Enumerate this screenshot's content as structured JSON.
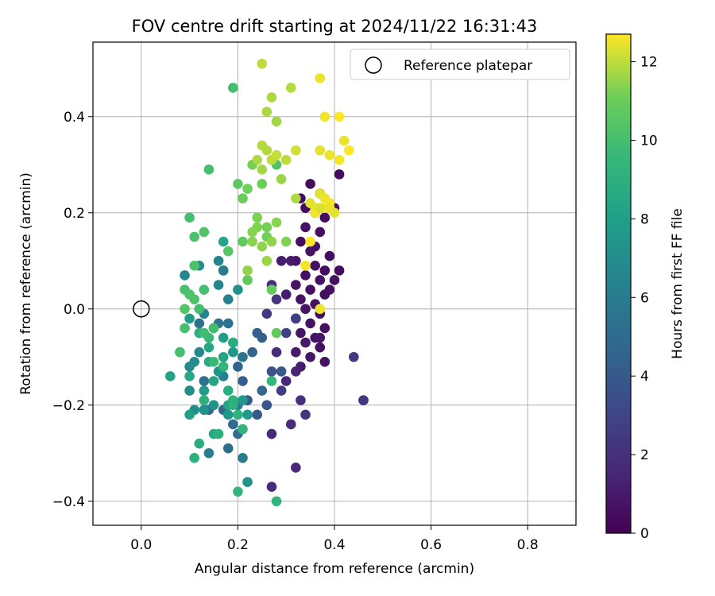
{
  "chart_data": {
    "type": "scatter",
    "title": "FOV centre drift starting at 2024/11/22 16:31:43",
    "xlabel": "Angular distance from reference (arcmin)",
    "ylabel": "Rotation from reference (arcmin)",
    "xlim": [
      -0.1,
      0.9
    ],
    "ylim": [
      -0.45,
      0.555
    ],
    "xticks": [
      0.0,
      0.2,
      0.4,
      0.6,
      0.8
    ],
    "xtick_labels": [
      "0.0",
      "0.2",
      "0.4",
      "0.6",
      "0.8"
    ],
    "yticks": [
      -0.4,
      -0.2,
      0.0,
      0.2,
      0.4
    ],
    "ytick_labels": [
      "−0.4",
      "−0.2",
      "0.0",
      "0.2",
      "0.4"
    ],
    "grid": true,
    "legend": {
      "placement": "top-right",
      "entries": [
        "Reference platepar"
      ]
    },
    "reference_point": {
      "x": 0.0,
      "y": 0.0
    },
    "colorbar": {
      "label": "Hours from first FF file",
      "colormap": "viridis",
      "range": [
        0,
        12.7
      ],
      "ticks": [
        0,
        2,
        4,
        6,
        8,
        10,
        12
      ],
      "tick_labels": [
        "0",
        "2",
        "4",
        "6",
        "8",
        "10",
        "12"
      ]
    },
    "points": [
      [
        0.41,
        0.28,
        0.4
      ],
      [
        0.37,
        0.24,
        0.5
      ],
      [
        0.4,
        0.21,
        0.6
      ],
      [
        0.35,
        0.26,
        0.4
      ],
      [
        0.33,
        0.23,
        0.5
      ],
      [
        0.36,
        0.2,
        0.6
      ],
      [
        0.38,
        0.19,
        0.5
      ],
      [
        0.34,
        0.17,
        0.7
      ],
      [
        0.37,
        0.16,
        0.6
      ],
      [
        0.33,
        0.14,
        0.5
      ],
      [
        0.36,
        0.13,
        0.6
      ],
      [
        0.35,
        0.12,
        0.7
      ],
      [
        0.39,
        0.11,
        0.5
      ],
      [
        0.32,
        0.1,
        0.8
      ],
      [
        0.36,
        0.09,
        0.6
      ],
      [
        0.38,
        0.08,
        0.5
      ],
      [
        0.41,
        0.08,
        0.4
      ],
      [
        0.34,
        0.07,
        0.6
      ],
      [
        0.37,
        0.06,
        0.7
      ],
      [
        0.32,
        0.05,
        0.8
      ],
      [
        0.35,
        0.04,
        0.6
      ],
      [
        0.38,
        0.03,
        0.5
      ],
      [
        0.33,
        0.02,
        0.7
      ],
      [
        0.36,
        0.01,
        0.6
      ],
      [
        0.34,
        0.0,
        0.8
      ],
      [
        0.37,
        -0.01,
        0.5
      ],
      [
        0.32,
        -0.02,
        0.9
      ],
      [
        0.35,
        -0.03,
        0.7
      ],
      [
        0.38,
        -0.04,
        0.6
      ],
      [
        0.33,
        -0.05,
        0.8
      ],
      [
        0.36,
        -0.06,
        0.7
      ],
      [
        0.34,
        -0.07,
        0.9
      ],
      [
        0.37,
        -0.08,
        0.6
      ],
      [
        0.32,
        -0.09,
        1.0
      ],
      [
        0.35,
        -0.1,
        0.8
      ],
      [
        0.38,
        -0.11,
        0.6
      ],
      [
        0.33,
        -0.12,
        1.0
      ],
      [
        0.31,
        0.1,
        1.0
      ],
      [
        0.34,
        0.21,
        0.5
      ],
      [
        0.3,
        0.03,
        1.1
      ],
      [
        0.29,
        0.1,
        1.2
      ],
      [
        0.39,
        0.04,
        0.6
      ],
      [
        0.4,
        0.06,
        0.7
      ],
      [
        0.37,
        -0.06,
        0.8
      ],
      [
        0.32,
        -0.13,
        1.5
      ],
      [
        0.28,
        -0.09,
        1.8
      ],
      [
        0.3,
        -0.15,
        1.7
      ],
      [
        0.33,
        -0.19,
        2.0
      ],
      [
        0.31,
        -0.24,
        1.9
      ],
      [
        0.27,
        -0.26,
        1.6
      ],
      [
        0.27,
        -0.37,
        1.7
      ],
      [
        0.32,
        -0.33,
        1.6
      ],
      [
        0.34,
        -0.22,
        2.2
      ],
      [
        0.44,
        -0.1,
        2.4
      ],
      [
        0.46,
        -0.19,
        2.5
      ],
      [
        0.46,
        -0.19,
        2.3
      ],
      [
        0.26,
        -0.01,
        2.4
      ],
      [
        0.29,
        -0.17,
        2.6
      ],
      [
        0.3,
        -0.05,
        2.8
      ],
      [
        0.27,
        0.05,
        1.9
      ],
      [
        0.28,
        0.02,
        2.2
      ],
      [
        0.32,
        -0.02,
        2.7
      ],
      [
        0.27,
        -0.13,
        3.6
      ],
      [
        0.26,
        -0.2,
        3.8
      ],
      [
        0.24,
        -0.22,
        4.0
      ],
      [
        0.22,
        -0.19,
        3.9
      ],
      [
        0.25,
        -0.06,
        4.2
      ],
      [
        0.24,
        -0.05,
        4.4
      ],
      [
        0.21,
        -0.15,
        4.3
      ],
      [
        0.2,
        -0.12,
        4.6
      ],
      [
        0.23,
        -0.09,
        4.5
      ],
      [
        0.29,
        -0.13,
        4.0
      ],
      [
        0.25,
        -0.17,
        4.8
      ],
      [
        0.19,
        -0.24,
        4.9
      ],
      [
        0.17,
        -0.21,
        4.7
      ],
      [
        0.2,
        -0.26,
        5.0
      ],
      [
        0.18,
        -0.29,
        5.2
      ],
      [
        0.14,
        -0.21,
        5.0
      ],
      [
        0.13,
        -0.15,
        5.3
      ],
      [
        0.12,
        -0.03,
        5.2
      ],
      [
        0.16,
        -0.03,
        5.5
      ],
      [
        0.18,
        -0.03,
        5.4
      ],
      [
        0.21,
        -0.1,
        5.6
      ],
      [
        0.2,
        -0.2,
        5.8
      ],
      [
        0.21,
        -0.31,
        6.0
      ],
      [
        0.14,
        -0.3,
        6.1
      ],
      [
        0.17,
        -0.14,
        6.2
      ],
      [
        0.18,
        0.02,
        6.3
      ],
      [
        0.17,
        0.08,
        6.2
      ],
      [
        0.17,
        0.08,
        6.0
      ],
      [
        0.16,
        0.1,
        6.5
      ],
      [
        0.16,
        0.05,
        6.6
      ],
      [
        0.09,
        0.07,
        6.6
      ],
      [
        0.13,
        -0.01,
        6.4
      ],
      [
        0.12,
        -0.09,
        6.7
      ],
      [
        0.11,
        -0.11,
        6.8
      ],
      [
        0.1,
        -0.12,
        6.9
      ],
      [
        0.1,
        -0.17,
        7.0
      ],
      [
        0.11,
        -0.21,
        7.1
      ],
      [
        0.13,
        -0.21,
        7.2
      ],
      [
        0.15,
        -0.2,
        7.3
      ],
      [
        0.16,
        -0.13,
        7.4
      ],
      [
        0.19,
        -0.09,
        7.5
      ],
      [
        0.21,
        -0.19,
        7.6
      ],
      [
        0.22,
        -0.22,
        7.7
      ],
      [
        0.22,
        -0.36,
        7.3
      ],
      [
        0.12,
        0.09,
        7.0
      ],
      [
        0.2,
        0.04,
        7.2
      ],
      [
        0.18,
        -0.22,
        7.5
      ],
      [
        0.13,
        -0.17,
        7.8
      ],
      [
        0.1,
        -0.02,
        7.9
      ],
      [
        0.15,
        -0.04,
        8.0
      ],
      [
        0.17,
        -0.06,
        8.0
      ],
      [
        0.06,
        -0.14,
        8.2
      ],
      [
        0.1,
        -0.22,
        8.1
      ],
      [
        0.17,
        -0.1,
        8.3
      ],
      [
        0.18,
        -0.2,
        8.3
      ],
      [
        0.17,
        0.14,
        8.4
      ],
      [
        0.14,
        -0.08,
        8.6
      ],
      [
        0.15,
        -0.15,
        8.4
      ],
      [
        0.14,
        -0.11,
        8.7
      ],
      [
        0.1,
        -0.14,
        8.5
      ],
      [
        0.12,
        -0.05,
        8.9
      ],
      [
        0.19,
        -0.07,
        8.8
      ],
      [
        0.18,
        -0.17,
        8.9
      ],
      [
        0.15,
        -0.26,
        8.6
      ],
      [
        0.16,
        -0.26,
        9.0
      ],
      [
        0.13,
        -0.19,
        9.0
      ],
      [
        0.12,
        -0.28,
        8.9
      ],
      [
        0.11,
        -0.31,
        9.0
      ],
      [
        0.19,
        -0.19,
        9.1
      ],
      [
        0.08,
        -0.09,
        9.2
      ],
      [
        0.19,
        -0.2,
        9.1
      ],
      [
        0.2,
        -0.22,
        9.2
      ],
      [
        0.21,
        -0.25,
        9.3
      ],
      [
        0.2,
        -0.38,
        9.4
      ],
      [
        0.28,
        -0.4,
        9.3
      ],
      [
        0.27,
        -0.15,
        9.5
      ],
      [
        0.17,
        -0.12,
        9.4
      ],
      [
        0.15,
        -0.11,
        9.6
      ],
      [
        0.14,
        -0.06,
        9.7
      ],
      [
        0.13,
        -0.05,
        9.8
      ],
      [
        0.15,
        -0.04,
        9.9
      ],
      [
        0.09,
        -0.04,
        10.0
      ],
      [
        0.08,
        -0.09,
        10.0
      ],
      [
        0.09,
        0.04,
        10.1
      ],
      [
        0.1,
        0.03,
        10.2
      ],
      [
        0.11,
        0.02,
        10.3
      ],
      [
        0.09,
        0.0,
        10.4
      ],
      [
        0.11,
        0.09,
        10.2
      ],
      [
        0.11,
        0.15,
        10.1
      ],
      [
        0.13,
        0.16,
        10.3
      ],
      [
        0.14,
        0.29,
        10.0
      ],
      [
        0.19,
        0.46,
        10.0
      ],
      [
        0.18,
        0.12,
        10.5
      ],
      [
        0.21,
        0.14,
        10.7
      ],
      [
        0.22,
        0.06,
        10.8
      ],
      [
        0.27,
        0.04,
        10.9
      ],
      [
        0.28,
        0.3,
        10.3
      ],
      [
        0.2,
        0.26,
        10.6
      ],
      [
        0.1,
        0.19,
        10.0
      ],
      [
        0.13,
        0.04,
        10.0
      ],
      [
        0.12,
        0.0,
        10.0
      ],
      [
        0.21,
        0.23,
        11.0
      ],
      [
        0.22,
        0.25,
        11.1
      ],
      [
        0.23,
        0.3,
        11.2
      ],
      [
        0.25,
        0.26,
        11.0
      ],
      [
        0.24,
        0.17,
        11.3
      ],
      [
        0.26,
        0.15,
        11.1
      ],
      [
        0.25,
        0.13,
        11.5
      ],
      [
        0.23,
        0.16,
        11.4
      ],
      [
        0.26,
        0.17,
        11.2
      ],
      [
        0.28,
        0.18,
        11.4
      ],
      [
        0.27,
        0.14,
        11.5
      ],
      [
        0.3,
        0.14,
        11.3
      ],
      [
        0.26,
        0.1,
        11.6
      ],
      [
        0.23,
        0.14,
        11.4
      ],
      [
        0.24,
        0.19,
        11.3
      ],
      [
        0.22,
        0.08,
        11.5
      ],
      [
        0.28,
        -0.05,
        10.8
      ],
      [
        0.27,
        0.44,
        11.8
      ],
      [
        0.25,
        0.51,
        12.0
      ],
      [
        0.31,
        0.46,
        11.9
      ],
      [
        0.26,
        0.41,
        11.8
      ],
      [
        0.28,
        0.39,
        11.7
      ],
      [
        0.25,
        0.34,
        11.9
      ],
      [
        0.24,
        0.31,
        11.8
      ],
      [
        0.26,
        0.33,
        11.9
      ],
      [
        0.27,
        0.31,
        12.0
      ],
      [
        0.28,
        0.32,
        12.1
      ],
      [
        0.3,
        0.31,
        12.0
      ],
      [
        0.32,
        0.33,
        12.2
      ],
      [
        0.25,
        0.29,
        11.7
      ],
      [
        0.29,
        0.27,
        11.6
      ],
      [
        0.32,
        0.23,
        11.8
      ],
      [
        0.37,
        0.48,
        12.5
      ],
      [
        0.38,
        0.4,
        12.6
      ],
      [
        0.41,
        0.4,
        12.7
      ],
      [
        0.37,
        0.33,
        12.4
      ],
      [
        0.39,
        0.32,
        12.5
      ],
      [
        0.41,
        0.31,
        12.6
      ],
      [
        0.42,
        0.35,
        12.5
      ],
      [
        0.43,
        0.33,
        12.7
      ],
      [
        0.37,
        0.24,
        12.4
      ],
      [
        0.38,
        0.23,
        12.5
      ],
      [
        0.39,
        0.22,
        12.6
      ],
      [
        0.38,
        0.21,
        12.7
      ],
      [
        0.36,
        0.21,
        12.5
      ],
      [
        0.35,
        0.22,
        12.4
      ],
      [
        0.36,
        0.2,
        12.6
      ],
      [
        0.37,
        0.21,
        12.3
      ],
      [
        0.39,
        0.21,
        12.5
      ],
      [
        0.4,
        0.2,
        12.4
      ],
      [
        0.35,
        0.14,
        12.7
      ],
      [
        0.34,
        0.09,
        12.6
      ],
      [
        0.37,
        0.0,
        12.5
      ]
    ]
  }
}
